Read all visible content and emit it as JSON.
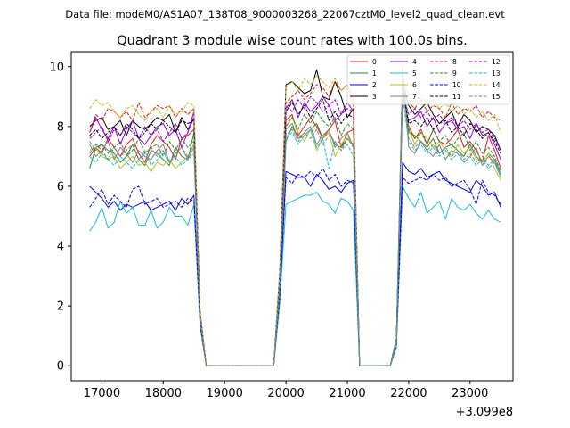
{
  "figure": {
    "suptitle": "Data file: modeM0/AS1A07_138T08_9000003268_22067cztM0_level2_quad_clean.evt"
  },
  "chart_data": {
    "type": "line",
    "title": "Quadrant 3 module wise count rates with 100.0s bins.",
    "xlabel": "",
    "ylabel": "",
    "x_offset_label": "+3.099e8",
    "xlim": [
      16500,
      23700
    ],
    "ylim": [
      -0.5,
      10.5
    ],
    "x_ticks": [
      17000,
      18000,
      19000,
      20000,
      21000,
      22000,
      23000
    ],
    "x_tick_labels": [
      "17000",
      "18000",
      "19000",
      "20000",
      "21000",
      "22000",
      "23000"
    ],
    "y_ticks": [
      0,
      2,
      4,
      6,
      8,
      10
    ],
    "y_tick_labels": [
      "0",
      "2",
      "4",
      "6",
      "8",
      "10"
    ],
    "legend": {
      "position": "top-right",
      "ncol": 4
    },
    "x": [
      16800,
      16900,
      17000,
      17100,
      17200,
      17300,
      17400,
      17500,
      17600,
      17700,
      17800,
      17900,
      18000,
      18100,
      18200,
      18300,
      18400,
      18500,
      18600,
      18700,
      18800,
      18900,
      19000,
      19100,
      19200,
      19300,
      19400,
      19500,
      19600,
      19700,
      19800,
      19900,
      20000,
      20100,
      20200,
      20300,
      20400,
      20500,
      20600,
      20700,
      20800,
      20900,
      21000,
      21100,
      21200,
      21300,
      21400,
      21500,
      21600,
      21700,
      21800,
      21900,
      22000,
      22100,
      22200,
      22300,
      22400,
      22500,
      22600,
      22700,
      22800,
      22900,
      23000,
      23100,
      23200,
      23300,
      23400,
      23500
    ],
    "series": [
      {
        "name": "0",
        "color": "#e41a1c",
        "dash": "solid",
        "values": [
          7.0,
          7.3,
          7.1,
          7.6,
          7.3,
          7.0,
          7.4,
          7.6,
          7.1,
          6.8,
          7.4,
          7.7,
          7.5,
          7.3,
          6.9,
          7.6,
          7.7,
          7.9,
          1.6,
          0,
          0,
          0,
          0,
          0,
          0,
          0,
          0,
          0,
          0,
          0,
          0,
          2.7,
          8.2,
          8.4,
          7.7,
          8.0,
          8.3,
          8.0,
          7.6,
          7.9,
          8.2,
          7.3,
          7.8,
          7.9,
          0,
          0,
          0,
          0,
          0,
          0,
          0.8,
          9.7,
          8.0,
          7.6,
          7.9,
          7.4,
          7.9,
          7.5,
          7.4,
          7.6,
          7.9,
          7.3,
          7.5,
          7.2,
          6.8,
          7.7,
          7.2,
          6.6
        ]
      },
      {
        "name": "1",
        "color": "#2e8b2e",
        "dash": "solid",
        "values": [
          6.6,
          7.3,
          7.4,
          7.2,
          7.1,
          6.8,
          7.0,
          7.4,
          6.9,
          6.7,
          7.2,
          7.1,
          6.9,
          6.7,
          7.3,
          7.0,
          6.9,
          7.8,
          1.5,
          0,
          0,
          0,
          0,
          0,
          0,
          0,
          0,
          0,
          0,
          0,
          0,
          2.6,
          7.5,
          8.0,
          7.6,
          7.7,
          7.9,
          8.1,
          7.6,
          7.8,
          7.4,
          7.3,
          7.6,
          7.4,
          0,
          0,
          0,
          0,
          0,
          0,
          0.9,
          9.6,
          7.8,
          7.7,
          7.5,
          7.3,
          7.6,
          7.1,
          7.3,
          7.4,
          7.2,
          7.0,
          7.4,
          7.0,
          6.8,
          7.1,
          6.9,
          6.4
        ]
      },
      {
        "name": "2",
        "color": "#0000ee",
        "dash": "solid",
        "values": [
          6.0,
          5.8,
          5.6,
          5.3,
          5.5,
          5.2,
          5.4,
          5.3,
          5.4,
          5.5,
          5.2,
          5.3,
          5.4,
          5.5,
          5.2,
          5.6,
          5.4,
          5.7,
          1.4,
          0,
          0,
          0,
          0,
          0,
          0,
          0,
          0,
          0,
          0,
          0,
          0,
          2.3,
          6.5,
          6.4,
          6.3,
          6.3,
          6.0,
          6.4,
          6.2,
          5.9,
          6.0,
          5.8,
          6.1,
          6.2,
          0,
          0,
          0,
          0,
          0,
          0,
          0.7,
          6.8,
          6.5,
          6.4,
          6.6,
          6.3,
          6.4,
          6.5,
          6.2,
          6.1,
          6.0,
          5.9,
          5.8,
          6.2,
          6.0,
          5.7,
          5.8,
          5.3
        ]
      },
      {
        "name": "3",
        "color": "#000000",
        "dash": "solid",
        "values": [
          8.0,
          8.2,
          8.3,
          7.9,
          8.0,
          8.2,
          7.7,
          8.2,
          8.0,
          7.9,
          8.1,
          8.3,
          8.2,
          8.4,
          7.8,
          8.3,
          7.9,
          8.3,
          1.8,
          0,
          0,
          0,
          0,
          0,
          0,
          0,
          0,
          0,
          0,
          0,
          0,
          3.2,
          9.4,
          9.5,
          9.3,
          9.1,
          9.2,
          9.9,
          9.0,
          8.9,
          9.5,
          9.0,
          8.3,
          8.6,
          0,
          0,
          0,
          0,
          0,
          0,
          0.9,
          9.5,
          8.7,
          8.4,
          8.6,
          8.8,
          8.4,
          8.1,
          8.3,
          8.5,
          8.0,
          8.4,
          8.2,
          7.8,
          8.0,
          7.9,
          7.7,
          7.2
        ]
      },
      {
        "name": "4",
        "color": "#9400d3",
        "dash": "solid",
        "values": [
          7.8,
          8.3,
          7.9,
          7.6,
          8.0,
          7.4,
          7.9,
          8.2,
          7.6,
          7.4,
          7.7,
          8.0,
          8.1,
          7.7,
          7.9,
          7.3,
          7.8,
          8.5,
          1.7,
          0,
          0,
          0,
          0,
          0,
          0,
          0,
          0,
          0,
          0,
          0,
          0,
          3.0,
          8.6,
          8.9,
          8.3,
          8.8,
          8.5,
          8.7,
          9.0,
          8.7,
          8.2,
          8.4,
          8.8,
          8.5,
          0,
          0,
          0,
          0,
          0,
          0,
          0.9,
          9.0,
          8.2,
          8.3,
          8.5,
          8.0,
          8.3,
          7.8,
          8.1,
          8.2,
          7.9,
          8.0,
          7.6,
          8.1,
          7.7,
          7.8,
          7.4,
          6.9
        ]
      },
      {
        "name": "5",
        "color": "#17becf",
        "dash": "solid",
        "values": [
          4.5,
          4.8,
          5.3,
          4.6,
          4.8,
          5.5,
          5.1,
          5.3,
          4.7,
          4.7,
          5.2,
          4.6,
          4.8,
          5.3,
          5.0,
          5.0,
          4.7,
          5.4,
          1.3,
          0,
          0,
          0,
          0,
          0,
          0,
          0,
          0,
          0,
          0,
          0,
          0,
          2.1,
          5.4,
          5.5,
          5.6,
          5.7,
          5.7,
          5.8,
          5.5,
          5.4,
          5.1,
          5.6,
          5.5,
          5.2,
          0,
          0,
          0,
          0,
          0,
          0,
          0.6,
          6.0,
          5.6,
          5.3,
          5.8,
          5.1,
          5.3,
          5.5,
          4.9,
          5.6,
          5.3,
          5.2,
          5.4,
          5.1,
          4.9,
          5.2,
          4.9,
          4.8
        ]
      },
      {
        "name": "6",
        "color": "#bcbd22",
        "dash": "solid",
        "values": [
          7.2,
          7.3,
          7.0,
          6.9,
          7.0,
          6.6,
          6.8,
          7.0,
          6.7,
          6.8,
          6.5,
          6.8,
          6.7,
          6.9,
          6.6,
          6.8,
          7.0,
          7.4,
          1.5,
          0,
          0,
          0,
          0,
          0,
          0,
          0,
          0,
          0,
          0,
          0,
          0,
          2.7,
          8.0,
          8.3,
          7.8,
          7.5,
          7.9,
          7.2,
          7.6,
          7.8,
          7.0,
          7.4,
          7.7,
          7.3,
          0,
          0,
          0,
          0,
          0,
          0,
          0.8,
          9.9,
          7.9,
          7.4,
          7.8,
          7.6,
          7.3,
          7.5,
          7.2,
          7.0,
          7.4,
          7.1,
          7.3,
          6.9,
          6.8,
          7.1,
          6.6,
          6.2
        ]
      },
      {
        "name": "7",
        "color": "#808080",
        "dash": "solid",
        "values": [
          7.4,
          7.0,
          7.2,
          7.5,
          6.9,
          7.3,
          7.1,
          6.8,
          7.2,
          7.0,
          6.9,
          7.2,
          7.4,
          6.8,
          7.1,
          7.3,
          6.9,
          7.3,
          1.5,
          0,
          0,
          0,
          0,
          0,
          0,
          0,
          0,
          0,
          0,
          0,
          0,
          2.8,
          7.9,
          8.1,
          7.6,
          7.8,
          8.0,
          7.4,
          7.7,
          7.9,
          7.3,
          7.6,
          7.8,
          7.3,
          0,
          0,
          0,
          0,
          0,
          0,
          0.8,
          10.0,
          7.3,
          7.1,
          7.5,
          7.2,
          7.0,
          7.4,
          6.9,
          7.2,
          7.1,
          6.8,
          7.0,
          7.3,
          6.7,
          7.0,
          6.8,
          6.3
        ]
      },
      {
        "name": "8",
        "color": "#e41a1c",
        "dash": "dashed",
        "values": [
          7.8,
          8.4,
          8.2,
          8.6,
          8.5,
          8.3,
          8.5,
          8.2,
          8.8,
          8.3,
          8.5,
          8.7,
          8.6,
          8.7,
          8.3,
          8.6,
          8.4,
          8.6,
          1.8,
          0,
          0,
          0,
          0,
          0,
          0,
          0,
          0,
          0,
          0,
          0,
          0,
          3.1,
          8.8,
          9.0,
          9.2,
          8.9,
          9.1,
          9.4,
          9.3,
          9.0,
          9.5,
          9.2,
          9.4,
          8.8,
          0,
          0,
          0,
          0,
          0,
          0,
          0.9,
          9.2,
          8.8,
          8.6,
          8.9,
          8.5,
          8.7,
          8.6,
          8.3,
          8.8,
          8.4,
          8.6,
          8.5,
          8.7,
          8.3,
          8.5,
          8.3,
          8.2
        ]
      },
      {
        "name": "9",
        "color": "#2e8b2e",
        "dash": "dashed",
        "values": [
          7.1,
          7.4,
          7.2,
          6.9,
          7.3,
          7.5,
          7.0,
          7.2,
          7.6,
          7.1,
          7.3,
          7.4,
          7.0,
          7.5,
          7.2,
          7.6,
          7.3,
          7.5,
          1.6,
          0,
          0,
          0,
          0,
          0,
          0,
          0,
          0,
          0,
          0,
          0,
          0,
          2.8,
          8.0,
          8.3,
          7.9,
          8.4,
          8.1,
          8.5,
          8.2,
          8.0,
          8.3,
          7.7,
          8.1,
          7.9,
          0,
          0,
          0,
          0,
          0,
          0,
          0.8,
          9.3,
          7.9,
          7.6,
          7.8,
          7.4,
          7.9,
          7.5,
          7.7,
          7.3,
          7.6,
          7.8,
          7.2,
          7.5,
          7.1,
          7.3,
          7.0,
          6.5
        ]
      },
      {
        "name": "10",
        "color": "#0000ee",
        "dash": "dashed",
        "values": [
          5.3,
          5.6,
          5.9,
          5.4,
          5.7,
          5.5,
          5.3,
          5.9,
          6.0,
          5.4,
          5.5,
          5.6,
          5.3,
          5.4,
          5.5,
          5.3,
          5.6,
          5.5,
          1.4,
          0,
          0,
          0,
          0,
          0,
          0,
          0,
          0,
          0,
          0,
          0,
          0,
          2.4,
          6.3,
          6.1,
          6.4,
          6.3,
          6.5,
          6.3,
          6.6,
          6.2,
          6.4,
          6.0,
          6.2,
          6.1,
          0,
          0,
          0,
          0,
          0,
          0,
          0.7,
          6.3,
          6.1,
          6.2,
          6.3,
          6.2,
          6.4,
          6.2,
          6.3,
          6.0,
          6.1,
          6.2,
          5.9,
          5.4,
          6.2,
          5.8,
          5.7,
          5.4
        ]
      },
      {
        "name": "11",
        "color": "#000000",
        "dash": "dashed",
        "values": [
          7.7,
          7.9,
          7.6,
          7.8,
          8.0,
          7.7,
          8.1,
          7.9,
          7.6,
          7.8,
          8.1,
          7.9,
          8.2,
          8.0,
          7.8,
          8.2,
          8.1,
          8.2,
          1.7,
          0,
          0,
          0,
          0,
          0,
          0,
          0,
          0,
          0,
          0,
          0,
          0,
          3.0,
          8.5,
          8.8,
          8.4,
          8.7,
          8.3,
          8.6,
          8.9,
          8.2,
          8.5,
          8.1,
          8.4,
          8.3,
          0,
          0,
          0,
          0,
          0,
          0,
          0.9,
          9.3,
          8.1,
          8.2,
          8.0,
          8.3,
          7.9,
          8.1,
          8.2,
          7.8,
          8.0,
          7.7,
          8.1,
          7.9,
          7.6,
          7.8,
          7.5,
          7.1
        ]
      },
      {
        "name": "12",
        "color": "#9400d3",
        "dash": "dashed",
        "values": [
          7.6,
          7.8,
          8.0,
          7.5,
          7.9,
          7.7,
          8.0,
          7.8,
          7.6,
          8.0,
          7.7,
          7.9,
          7.5,
          7.8,
          8.1,
          7.6,
          7.8,
          8.3,
          1.6,
          0,
          0,
          0,
          0,
          0,
          0,
          0,
          0,
          0,
          0,
          0,
          0,
          2.9,
          8.7,
          8.5,
          8.9,
          8.6,
          9.0,
          8.8,
          8.5,
          8.7,
          8.9,
          8.4,
          8.6,
          8.5,
          0,
          0,
          0,
          0,
          0,
          0,
          0.8,
          9.1,
          8.4,
          8.6,
          8.3,
          8.5,
          8.2,
          8.4,
          8.1,
          8.3,
          8.0,
          8.2,
          7.9,
          8.1,
          7.8,
          7.9,
          7.6,
          7.2
        ]
      },
      {
        "name": "13",
        "color": "#17becf",
        "dash": "dashed",
        "values": [
          7.0,
          6.8,
          7.1,
          6.9,
          6.7,
          7.0,
          6.8,
          6.6,
          6.9,
          7.2,
          6.7,
          6.9,
          7.1,
          6.8,
          7.0,
          6.7,
          6.9,
          7.1,
          1.5,
          0,
          0,
          0,
          0,
          0,
          0,
          0,
          0,
          0,
          0,
          0,
          0,
          2.6,
          7.6,
          7.8,
          7.4,
          7.7,
          7.9,
          7.3,
          7.6,
          6.6,
          7.5,
          7.2,
          7.4,
          7.0,
          0,
          0,
          0,
          0,
          0,
          0,
          0.7,
          9.0,
          7.5,
          7.2,
          7.4,
          7.1,
          7.3,
          7.0,
          7.2,
          6.9,
          7.1,
          6.8,
          7.0,
          6.7,
          6.9,
          6.6,
          6.8,
          6.4
        ]
      },
      {
        "name": "14",
        "color": "#bcbd22",
        "dash": "dashed",
        "values": [
          8.6,
          8.9,
          8.7,
          8.8,
          8.5,
          8.3,
          8.6,
          8.7,
          8.4,
          8.2,
          8.5,
          8.6,
          8.3,
          8.7,
          8.4,
          8.5,
          8.8,
          8.7,
          1.8,
          0,
          0,
          0,
          0,
          0,
          0,
          0,
          0,
          0,
          0,
          0,
          0,
          3.2,
          9.3,
          9.5,
          9.2,
          9.6,
          9.4,
          9.7,
          9.5,
          9.3,
          9.6,
          9.2,
          9.4,
          9.1,
          0,
          0,
          0,
          0,
          0,
          0,
          0.9,
          9.8,
          9.0,
          8.8,
          9.1,
          8.7,
          8.9,
          8.6,
          8.8,
          8.5,
          8.7,
          8.4,
          8.6,
          8.3,
          8.5,
          8.2,
          8.4,
          7.8
        ]
      },
      {
        "name": "15",
        "color": "#808080",
        "dash": "dashed",
        "values": [
          7.5,
          7.2,
          7.4,
          7.1,
          7.3,
          7.0,
          7.2,
          7.4,
          6.9,
          7.1,
          7.3,
          7.0,
          7.2,
          6.8,
          7.1,
          7.3,
          7.0,
          7.4,
          1.5,
          0,
          0,
          0,
          0,
          0,
          0,
          0,
          0,
          0,
          0,
          0,
          0,
          2.7,
          7.7,
          7.9,
          7.5,
          7.8,
          7.6,
          7.9,
          7.4,
          7.7,
          7.5,
          7.2,
          7.6,
          7.3,
          0,
          0,
          0,
          0,
          0,
          0,
          0.8,
          9.4,
          7.6,
          7.3,
          7.5,
          7.2,
          7.4,
          7.1,
          7.3,
          7.0,
          7.2,
          6.9,
          7.1,
          6.8,
          7.0,
          6.7,
          6.9,
          6.5
        ]
      }
    ]
  }
}
